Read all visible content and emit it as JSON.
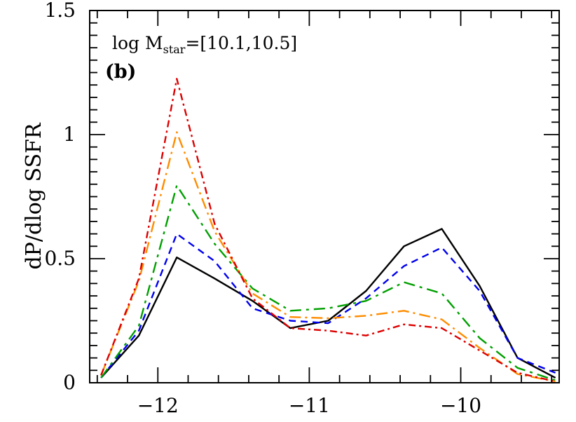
{
  "chart_data": {
    "type": "line",
    "title": "",
    "xlabel": "",
    "ylabel": "dP/dlog SSFR",
    "xlim": [
      -12.45,
      -9.35
    ],
    "ylim": [
      0,
      1.5
    ],
    "grid": false,
    "legend": "none",
    "annotations": {
      "mass_prefix": "log M",
      "mass_subscript": "star",
      "mass_range": "=[10.1,10.5]",
      "panel": "(b)"
    },
    "x_ticks": [
      {
        "value": -12,
        "label": "−12"
      },
      {
        "value": -11,
        "label": "−11"
      },
      {
        "value": -10,
        "label": "−10"
      }
    ],
    "y_ticks": [
      {
        "value": 0,
        "label": "0"
      },
      {
        "value": 0.5,
        "label": "0.5"
      },
      {
        "value": 1,
        "label": "1"
      },
      {
        "value": 1.5,
        "label": "1.5"
      }
    ],
    "x": [
      -12.375,
      -12.125,
      -11.875,
      -11.625,
      -11.375,
      -11.125,
      -10.875,
      -10.625,
      -10.375,
      -10.125,
      -9.875,
      -9.625,
      -9.375
    ],
    "series": [
      {
        "color": "#000000",
        "dash": "",
        "values": [
          0.02,
          0.19,
          0.505,
          0.42,
          0.33,
          0.22,
          0.25,
          0.37,
          0.55,
          0.62,
          0.39,
          0.1,
          0.02
        ]
      },
      {
        "color": "#0000ee",
        "dash": "10 7",
        "values": [
          0.02,
          0.21,
          0.6,
          0.49,
          0.3,
          0.25,
          0.24,
          0.34,
          0.47,
          0.545,
          0.37,
          0.1,
          0.04
        ]
      },
      {
        "color": "#00a000",
        "dash": "16 7 4 7",
        "values": [
          0.02,
          0.23,
          0.795,
          0.56,
          0.38,
          0.29,
          0.3,
          0.33,
          0.405,
          0.36,
          0.18,
          0.06,
          0.01
        ]
      },
      {
        "color": "#ff8c00",
        "dash": "16 6 3 6",
        "values": [
          0.03,
          0.41,
          1.01,
          0.61,
          0.36,
          0.265,
          0.26,
          0.27,
          0.29,
          0.255,
          0.14,
          0.035,
          0.005
        ]
      },
      {
        "color": "#dd0000",
        "dash": "10 5 3 5",
        "values": [
          0.03,
          0.42,
          1.225,
          0.64,
          0.34,
          0.22,
          0.21,
          0.19,
          0.235,
          0.22,
          0.13,
          0.04,
          0.005
        ]
      }
    ]
  }
}
